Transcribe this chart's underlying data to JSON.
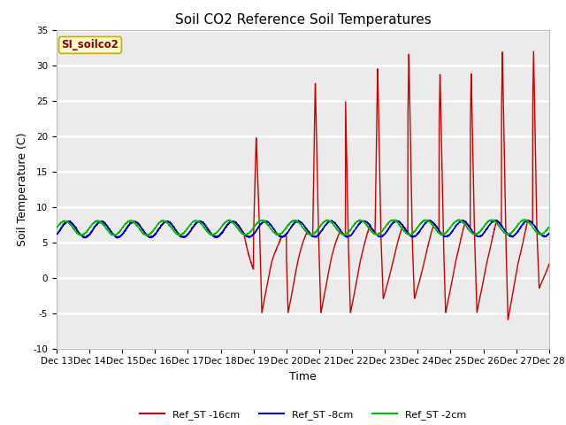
{
  "title": "Soil CO2 Reference Soil Temperatures",
  "xlabel": "Time",
  "ylabel": "Soil Temperature (C)",
  "ylim": [
    -10,
    35
  ],
  "xlim": [
    0,
    15
  ],
  "xtick_labels": [
    "Dec 13",
    "Dec 14",
    "Dec 15",
    "Dec 16",
    "Dec 17",
    "Dec 18",
    "Dec 19",
    "Dec 20",
    "Dec 21",
    "Dec 22",
    "Dec 23",
    "Dec 24",
    "Dec 25",
    "Dec 26",
    "Dec 27",
    "Dec 28"
  ],
  "ytick_values": [
    -10,
    -5,
    0,
    5,
    10,
    15,
    20,
    25,
    30,
    35
  ],
  "bg_color": "#ffffff",
  "plot_bg_color": "#ebebeb",
  "legend_label": "SI_soilco2",
  "line_colors": {
    "ref16": "#cc0000",
    "ref8": "#0000cc",
    "ref2": "#00bb00"
  },
  "line_widths": {
    "ref16": 1.0,
    "ref8": 1.0,
    "ref2": 1.0
  },
  "legend_entries": [
    "Ref_ST -16cm",
    "Ref_ST -8cm",
    "Ref_ST -2cm"
  ],
  "legend_colors": [
    "#cc0000",
    "#0000cc",
    "#00bb00"
  ],
  "title_fontsize": 11,
  "axis_fontsize": 9,
  "tick_fontsize": 7.5
}
